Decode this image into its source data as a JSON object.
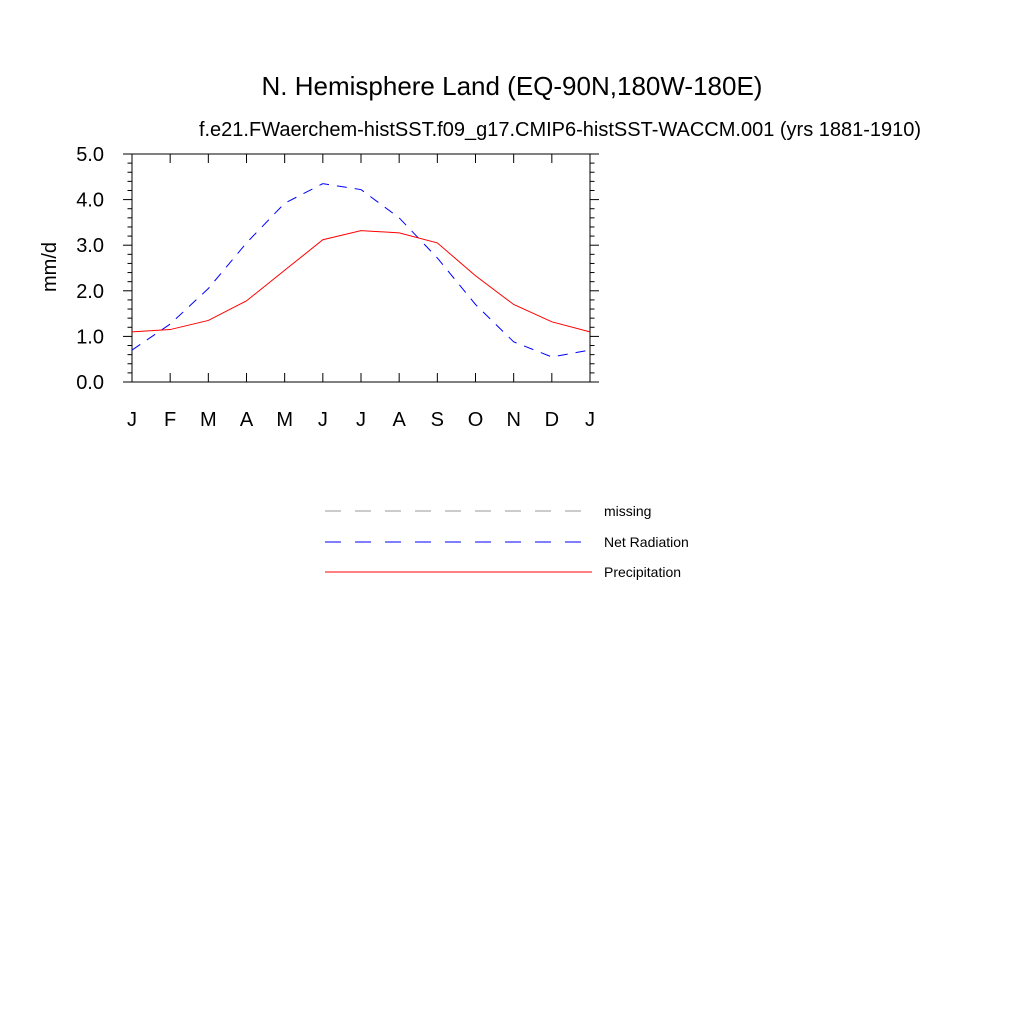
{
  "chart_data": {
    "type": "line",
    "title": "N. Hemisphere Land (EQ-90N,180W-180E)",
    "subtitle": "f.e21.FWaerchem-histSST.f09_g17.CMIP6-histSST-WACCM.001 (yrs 1881-1910)",
    "xlabel": "",
    "ylabel": "mm/d",
    "categories": [
      "J",
      "F",
      "M",
      "A",
      "M",
      "J",
      "J",
      "A",
      "S",
      "O",
      "N",
      "D",
      "J"
    ],
    "ylim": [
      0,
      5
    ],
    "yticks": [
      "0.0",
      "1.0",
      "2.0",
      "3.0",
      "4.0",
      "5.0"
    ],
    "grid": false,
    "series": [
      {
        "name": "Net Radiation",
        "color": "#0000ff",
        "dash": "dashed",
        "values": [
          0.7,
          1.27,
          2.05,
          3.05,
          3.92,
          4.35,
          4.22,
          3.6,
          2.72,
          1.7,
          0.88,
          0.55,
          0.7
        ]
      },
      {
        "name": "Precipitation",
        "color": "#ff0000",
        "dash": "solid",
        "values": [
          1.1,
          1.15,
          1.35,
          1.78,
          2.45,
          3.12,
          3.32,
          3.27,
          3.05,
          2.33,
          1.7,
          1.32,
          1.1
        ]
      }
    ],
    "legend": {
      "placement": "below",
      "entries": [
        {
          "label": "missing",
          "color": "#999999",
          "dash": "dashed"
        },
        {
          "label": "Net Radiation",
          "color": "#0000ff",
          "dash": "dashed"
        },
        {
          "label": "Precipitation",
          "color": "#ff0000",
          "dash": "solid"
        }
      ]
    }
  }
}
